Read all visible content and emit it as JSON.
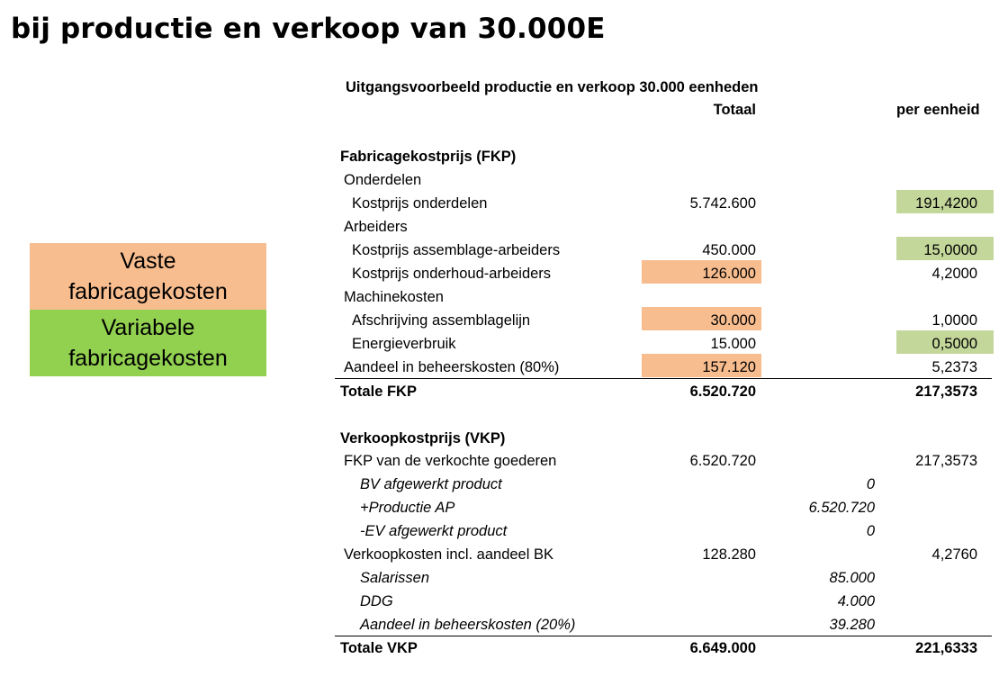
{
  "title": "bij productie en verkoop van 30.000E",
  "legend": {
    "fixed_line1": "Vaste",
    "fixed_line2": "fabricagekosten",
    "variable_line1": "Variabele",
    "variable_line2": "fabricagekosten",
    "fixed_color": "#f8bd8f",
    "variable_color": "#92d050"
  },
  "table": {
    "caption": "Uitgangsvoorbeeld productie en verkoop 30.000 eenheden",
    "col_total": "Totaal",
    "col_unit": "per eenheid",
    "fkp": {
      "heading": "Fabricagekostprijs (FKP)",
      "onderdelen": "Onderdelen",
      "kostprijs_onderdelen": {
        "label": "Kostprijs onderdelen",
        "total": "5.742.600",
        "unit": "191,4200"
      },
      "arbeiders": "Arbeiders",
      "assemblage": {
        "label": "Kostprijs assemblage-arbeiders",
        "total": "450.000",
        "unit": "15,0000"
      },
      "onderhoud": {
        "label": "Kostprijs onderhoud-arbeiders",
        "total": "126.000",
        "unit": "4,2000"
      },
      "machinekosten": "Machinekosten",
      "afschrijving": {
        "label": "Afschrijving assemblagelijn",
        "total": "30.000",
        "unit": "1,0000"
      },
      "energie": {
        "label": "Energieverbruik",
        "total": "15.000",
        "unit": "0,5000"
      },
      "beheer": {
        "label": "Aandeel in beheerskosten (80%)",
        "total": "157.120",
        "unit": "5,2373"
      },
      "totaal": {
        "label": "Totale FKP",
        "total": "6.520.720",
        "unit": "217,3573"
      }
    },
    "vkp": {
      "heading": "Verkoopkostprijs (VKP)",
      "fkp_verkocht": {
        "label": "FKP van de verkochte goederen",
        "total": "6.520.720",
        "unit": "217,3573"
      },
      "bv": {
        "label": "BV afgewerkt product",
        "sub": "0"
      },
      "productie": {
        "label": "+Productie AP",
        "sub": "6.520.720"
      },
      "ev": {
        "label": "-EV afgewerkt product",
        "sub": "0"
      },
      "verkoopkosten": {
        "label": "Verkoopkosten incl. aandeel BK",
        "total": "128.280",
        "unit": "4,2760"
      },
      "salarissen": {
        "label": "Salarissen",
        "sub": "85.000"
      },
      "ddg": {
        "label": "DDG",
        "sub": "4.000"
      },
      "beheer": {
        "label": "Aandeel in beheerskosten (20%)",
        "sub": "39.280"
      },
      "totaal": {
        "label": "Totale VKP",
        "total": "6.649.000",
        "unit": "221,6333"
      }
    }
  }
}
